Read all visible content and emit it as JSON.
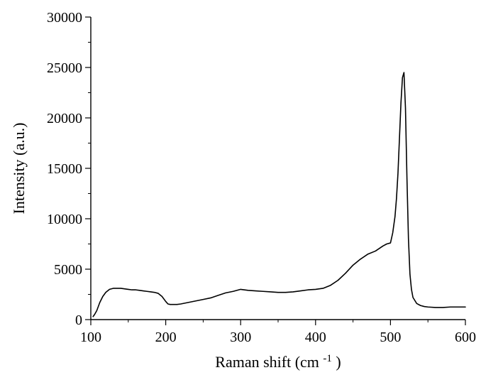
{
  "chart_data": {
    "type": "line",
    "title": "",
    "xlabel": {
      "main": "Raman shift (cm",
      "sup": "-1",
      "end": ")"
    },
    "ylabel": "Intensity (a.u.)",
    "xlim": [
      100,
      600
    ],
    "ylim": [
      0,
      30000
    ],
    "x_ticks": [
      100,
      200,
      300,
      400,
      500,
      600
    ],
    "y_ticks": [
      0,
      5000,
      10000,
      15000,
      20000,
      25000,
      30000
    ],
    "grid": false,
    "legend": "none",
    "line_color": "#000000",
    "series": [
      {
        "x": [
          103,
          105,
          108,
          112,
          116,
          120,
          125,
          130,
          135,
          140,
          145,
          150,
          155,
          160,
          165,
          170,
          175,
          180,
          185,
          190,
          195,
          200,
          203,
          206,
          210,
          215,
          220,
          230,
          240,
          250,
          260,
          270,
          280,
          290,
          300,
          310,
          320,
          330,
          340,
          350,
          360,
          370,
          380,
          390,
          400,
          410,
          420,
          430,
          440,
          450,
          460,
          470,
          480,
          490,
          495,
          500,
          503,
          506,
          508,
          510,
          512,
          514,
          516,
          518,
          520,
          522,
          524,
          526,
          528,
          530,
          535,
          540,
          545,
          550,
          560,
          570,
          580,
          590,
          600
        ],
        "y": [
          300,
          500,
          900,
          1700,
          2300,
          2700,
          3000,
          3100,
          3100,
          3100,
          3050,
          3000,
          2950,
          2950,
          2900,
          2850,
          2800,
          2750,
          2700,
          2600,
          2300,
          1800,
          1550,
          1500,
          1500,
          1500,
          1550,
          1700,
          1850,
          2000,
          2150,
          2400,
          2650,
          2800,
          3000,
          2900,
          2850,
          2800,
          2750,
          2700,
          2700,
          2750,
          2850,
          2950,
          3000,
          3100,
          3400,
          3900,
          4600,
          5400,
          6000,
          6500,
          6800,
          7300,
          7500,
          7600,
          8600,
          10200,
          12000,
          14500,
          18000,
          21500,
          24000,
          24500,
          21000,
          14000,
          8000,
          4500,
          3000,
          2200,
          1600,
          1400,
          1300,
          1250,
          1200,
          1200,
          1250,
          1250,
          1250
        ]
      }
    ]
  }
}
